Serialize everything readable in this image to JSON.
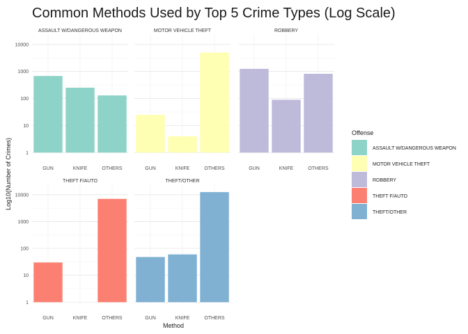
{
  "chart_data": {
    "type": "bar",
    "title": "Common Methods Used by Top 5 Crime Types (Log Scale)",
    "xlabel": "Method",
    "ylabel": "Log10(Number of Crimes)",
    "y_scale": "log10",
    "ylim": [
      1,
      15000
    ],
    "y_ticks": [
      1,
      10,
      100,
      1000,
      10000
    ],
    "categories": [
      "GUN",
      "KNIFE",
      "OTHERS"
    ],
    "grid": true,
    "facets": "5 panels, 3 columns",
    "legend": {
      "title": "Offense",
      "position": "right",
      "entries": [
        {
          "label": "ASSAULT W/DANGEROUS WEAPON",
          "color": "#8DD3C7"
        },
        {
          "label": "MOTOR VEHICLE THEFT",
          "color": "#FFFFB3"
        },
        {
          "label": "ROBBERY",
          "color": "#BEBADA"
        },
        {
          "label": "THEFT F/AUTO",
          "color": "#FB8072"
        },
        {
          "label": "THEFT/OTHER",
          "color": "#80B1D3"
        }
      ]
    },
    "series": [
      {
        "name": "ASSAULT W/DANGEROUS WEAPON",
        "color": "#8DD3C7",
        "values": [
          680,
          250,
          130
        ]
      },
      {
        "name": "MOTOR VEHICLE THEFT",
        "color": "#FFFFB3",
        "values": [
          25,
          4,
          5000
        ]
      },
      {
        "name": "ROBBERY",
        "color": "#BEBADA",
        "values": [
          1250,
          90,
          820
        ]
      },
      {
        "name": "THEFT F/AUTO",
        "color": "#FB8072",
        "values": [
          30,
          null,
          7000
        ]
      },
      {
        "name": "THEFT/OTHER",
        "color": "#80B1D3",
        "values": [
          48,
          60,
          12500
        ]
      }
    ]
  }
}
